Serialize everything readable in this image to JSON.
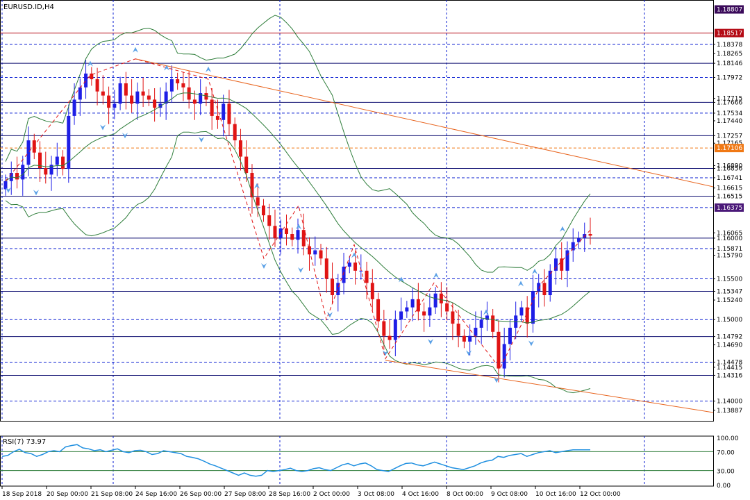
{
  "window": {
    "symbol": "EURUSD.ID,H4",
    "rsi_label": "RSI(7) 73.97"
  },
  "colors": {
    "bull": "#1e1ee6",
    "bear": "#e01414",
    "grid": "#0a1ed2",
    "bb": "#2e7d3a",
    "trend": "#e8641e",
    "rsi": "#1e8fe0",
    "fractal": "#5aa0e6"
  },
  "chart_data": [
    {
      "type": "candlestick",
      "title": "EURUSD.ID,H4",
      "ylim": [
        1.138,
        1.1888
      ],
      "y_ticks": [
        "1.18807",
        "1.18517",
        "1.18378",
        "1.18265",
        "1.18146",
        "1.17972",
        "1.17715",
        "1.17666",
        "1.17534",
        "1.17440",
        "1.17257",
        "1.17165",
        "1.17106",
        "1.16890",
        "1.16856",
        "1.16741",
        "1.16615",
        "1.16515",
        "1.16375",
        "1.16065",
        "1.16000",
        "1.15871",
        "1.15790",
        "1.15500",
        "1.15347",
        "1.15240",
        "1.15000",
        "1.14792",
        "1.14690",
        "1.14478",
        "1.14415",
        "1.14316",
        "1.14000",
        "1.13887"
      ],
      "highlighted_levels": [
        {
          "value": "1.18807",
          "color": "#3a0a5a"
        },
        {
          "value": "1.18517",
          "color": "#b40a14"
        },
        {
          "value": "1.17106",
          "color": "#f07814"
        },
        {
          "value": "1.16375",
          "color": "#4a1878"
        }
      ],
      "levels": [
        1.18517,
        1.18146,
        1.17666,
        1.17257,
        1.16856,
        1.16515,
        1.16,
        1.15347,
        1.14792,
        1.14316
      ],
      "dashed_levels": [
        1.18378,
        1.17972,
        1.17534,
        1.17106,
        1.16741,
        1.16375,
        1.15871,
        1.155,
        1.15,
        1.14478,
        1.14
      ],
      "x_labels": [
        "18 Sep 2018",
        "20 Sep 00:00",
        "21 Sep 08:00",
        "24 Sep 16:00",
        "26 Sep 00:00",
        "27 Sep 08:00",
        "28 Sep 16:00",
        "2 Oct 00:00",
        "3 Oct 08:00",
        "4 Oct 16:00",
        "8 Oct 00:00",
        "9 Oct 08:00",
        "10 Oct 16:00",
        "12 Oct 00:00"
      ],
      "closes": [
        1.167,
        1.168,
        1.1672,
        1.169,
        1.172,
        1.1705,
        1.1686,
        1.1678,
        1.169,
        1.17,
        1.1685,
        1.175,
        1.177,
        1.1785,
        1.1802,
        1.1795,
        1.178,
        1.1775,
        1.176,
        1.1765,
        1.179,
        1.1775,
        1.1765,
        1.178,
        1.1775,
        1.177,
        1.176,
        1.1765,
        1.178,
        1.1795,
        1.179,
        1.1785,
        1.177,
        1.1765,
        1.1778,
        1.177,
        1.175,
        1.1745,
        1.1765,
        1.174,
        1.172,
        1.17,
        1.168,
        1.165,
        1.164,
        1.1628,
        1.1615,
        1.16,
        1.1612,
        1.1605,
        1.1598,
        1.161,
        1.159,
        1.158,
        1.1585,
        1.1575,
        1.155,
        1.153,
        1.1545,
        1.1565,
        1.157,
        1.156,
        1.156,
        1.1545,
        1.1525,
        1.1498,
        1.148,
        1.1475,
        1.15,
        1.151,
        1.1515,
        1.1525,
        1.151,
        1.1505,
        1.1515,
        1.1532,
        1.152,
        1.151,
        1.1495,
        1.148,
        1.1473,
        1.148,
        1.149,
        1.15,
        1.1505,
        1.1485,
        1.144,
        1.147,
        1.149,
        1.1505,
        1.1515,
        1.1495,
        1.1535,
        1.1545,
        1.153,
        1.156,
        1.1575,
        1.156,
        1.1585,
        1.1595,
        1.16,
        1.1605,
        1.1603
      ],
      "bollinger": {
        "upper": "present",
        "middle": "present",
        "lower": "present"
      },
      "trendlines": 2,
      "zigzag": "present"
    },
    {
      "type": "line",
      "title": "RSI(7) 73.97",
      "ylim": [
        0,
        100
      ],
      "y_ticks": [
        "100.00",
        "70.00",
        "30.00",
        "0.00"
      ],
      "levels": [
        70,
        30
      ],
      "rsi": [
        60,
        62,
        70,
        75,
        68,
        66,
        60,
        64,
        70,
        72,
        70,
        80,
        83,
        85,
        78,
        76,
        72,
        74,
        70,
        73,
        76,
        70,
        68,
        72,
        73,
        70,
        64,
        66,
        72,
        70,
        68,
        66,
        60,
        58,
        55,
        50,
        44,
        40,
        35,
        30,
        25,
        20,
        25,
        20,
        18,
        20,
        30,
        28,
        30,
        32,
        35,
        30,
        28,
        30,
        34,
        36,
        32,
        30,
        36,
        42,
        45,
        40,
        44,
        46,
        40,
        32,
        30,
        28,
        34,
        40,
        45,
        46,
        42,
        40,
        44,
        48,
        44,
        40,
        36,
        34,
        32,
        36,
        40,
        46,
        50,
        52,
        60,
        58,
        62,
        64,
        66,
        60,
        64,
        68,
        70,
        72,
        68,
        70,
        72,
        74,
        74,
        74,
        74
      ]
    }
  ]
}
